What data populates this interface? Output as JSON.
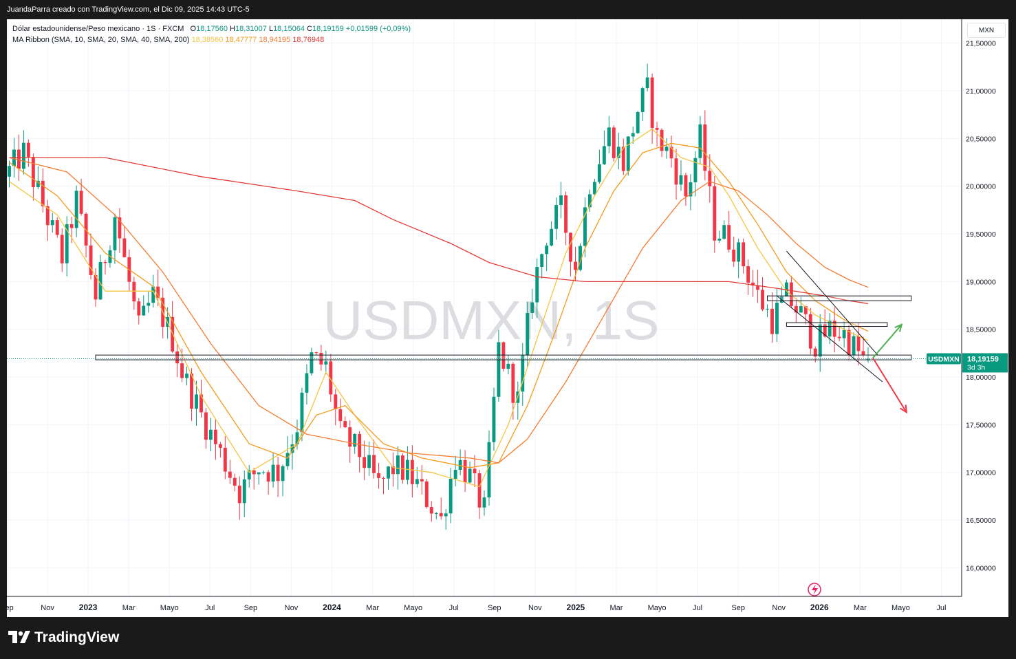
{
  "header": {
    "attribution": "JuandaParra creado con TradingView.com, el Dic 09, 2025 14:43 UTC-5"
  },
  "legend": {
    "instrument": "Dólar estadounidense/Peso mexicano · 1S · FXCM",
    "ohlc": [
      {
        "label": "O",
        "value": "18,17560"
      },
      {
        "label": "H",
        "value": "18,31007"
      },
      {
        "label": "L",
        "value": "18,15064"
      },
      {
        "label": "C",
        "value": "18,19159"
      }
    ],
    "change": "+0,01599 (+0,09%)",
    "change_color": "#089981",
    "indicator_name": "MA Ribbon (SMA, 10, SMA, 20, SMA, 40, SMA, 200)",
    "indicator_values": [
      {
        "value": "18,38560",
        "color": "#f5c542"
      },
      {
        "value": "18,47777",
        "color": "#f59a1a"
      },
      {
        "value": "18,94195",
        "color": "#f57c30"
      },
      {
        "value": "18,76948",
        "color": "#e53935"
      }
    ]
  },
  "currency": "MXN",
  "watermark": "USDMXN, 1S",
  "price_label": {
    "symbol": "USDMXN",
    "price": "18,19159",
    "countdown": "3d 3h",
    "color": "#089981"
  },
  "footer": {
    "brand": "TradingView"
  },
  "colors": {
    "up": "#089981",
    "down": "#f23645",
    "sma10": "#f5c542",
    "sma20": "#f59a1a",
    "sma40": "#f57c30",
    "sma200": "#e53935"
  },
  "chart_data": {
    "type": "candlestick",
    "title": "Dólar estadounidense/Peso mexicano · 1S · FXCM",
    "xlabel": "",
    "ylabel": "",
    "y_ticks": [
      "16,00000",
      "16,50000",
      "17,00000",
      "17,50000",
      "18,00000",
      "18,50000",
      "19,00000",
      "19,50000",
      "20,00000",
      "20,50000",
      "21,00000",
      "21,50000"
    ],
    "ylim": [
      15.7,
      21.75
    ],
    "x_ticks": [
      "Sep",
      "Nov",
      "2023",
      "Mar",
      "Mayo",
      "Jul",
      "Sep",
      "Nov",
      "2024",
      "Mar",
      "Mayo",
      "Jul",
      "Sep",
      "Nov",
      "2025",
      "Mar",
      "Mayo",
      "Jul",
      "Sep",
      "Nov",
      "2026",
      "Mar",
      "Mayo",
      "Jul"
    ],
    "bold_x_ticks": [
      "2023",
      "2024",
      "2025",
      "2026"
    ],
    "weeks_visible": 199,
    "weeks_plotted": 166,
    "anchors": [
      [
        0,
        20.1
      ],
      [
        4,
        20.35
      ],
      [
        8,
        19.8
      ],
      [
        12,
        19.25
      ],
      [
        15,
        19.85
      ],
      [
        19,
        18.85
      ],
      [
        23,
        19.7
      ],
      [
        28,
        18.5
      ],
      [
        31,
        18.85
      ],
      [
        35,
        18.4
      ],
      [
        37,
        18.05
      ],
      [
        41,
        17.6
      ],
      [
        45,
        17.2
      ],
      [
        49,
        16.8
      ],
      [
        53,
        17.05
      ],
      [
        57,
        17.0
      ],
      [
        61,
        17.5
      ],
      [
        64,
        18.2
      ],
      [
        67,
        18.1
      ],
      [
        70,
        17.4
      ],
      [
        74,
        17.2
      ],
      [
        78,
        16.85
      ],
      [
        81,
        17.05
      ],
      [
        84,
        17.0
      ],
      [
        87,
        16.8
      ],
      [
        91,
        16.5
      ],
      [
        94,
        17.15
      ],
      [
        97,
        16.95
      ],
      [
        100,
        16.6
      ],
      [
        103,
        18.3
      ],
      [
        107,
        17.75
      ],
      [
        110,
        18.9
      ],
      [
        113,
        19.5
      ],
      [
        116,
        19.75
      ],
      [
        119,
        19.15
      ],
      [
        122,
        20.05
      ],
      [
        126,
        20.55
      ],
      [
        129,
        20.25
      ],
      [
        132,
        20.8
      ],
      [
        134,
        21.0
      ],
      [
        136,
        20.5
      ],
      [
        139,
        20.3
      ],
      [
        142,
        19.9
      ],
      [
        145,
        20.5
      ],
      [
        148,
        19.55
      ],
      [
        151,
        19.45
      ],
      [
        154,
        19.2
      ],
      [
        157,
        18.85
      ],
      [
        160,
        18.6
      ],
      [
        163,
        18.85
      ],
      [
        166,
        18.65
      ],
      [
        169,
        18.35
      ],
      [
        172,
        18.5
      ],
      [
        175,
        18.45
      ],
      [
        178,
        18.25
      ],
      [
        179,
        18.19
      ]
    ],
    "series": [
      {
        "name": "SMA 10",
        "points": [
          [
            0,
            20.05
          ],
          [
            10,
            19.7
          ],
          [
            20,
            18.9
          ],
          [
            30,
            18.9
          ],
          [
            40,
            17.8
          ],
          [
            50,
            17.0
          ],
          [
            60,
            17.3
          ],
          [
            66,
            18.05
          ],
          [
            72,
            17.6
          ],
          [
            80,
            17.05
          ],
          [
            88,
            17.0
          ],
          [
            98,
            16.85
          ],
          [
            104,
            17.5
          ],
          [
            110,
            18.4
          ],
          [
            116,
            19.3
          ],
          [
            122,
            19.9
          ],
          [
            128,
            20.4
          ],
          [
            134,
            20.6
          ],
          [
            140,
            20.3
          ],
          [
            146,
            20.2
          ],
          [
            150,
            19.9
          ],
          [
            156,
            19.35
          ],
          [
            162,
            18.9
          ],
          [
            168,
            18.65
          ],
          [
            174,
            18.5
          ],
          [
            179,
            18.38
          ]
        ]
      },
      {
        "name": "SMA 20",
        "points": [
          [
            0,
            20.25
          ],
          [
            10,
            19.9
          ],
          [
            20,
            19.3
          ],
          [
            30,
            18.95
          ],
          [
            40,
            18.05
          ],
          [
            50,
            17.3
          ],
          [
            58,
            17.15
          ],
          [
            64,
            17.6
          ],
          [
            70,
            17.7
          ],
          [
            78,
            17.3
          ],
          [
            86,
            17.15
          ],
          [
            96,
            17.05
          ],
          [
            102,
            17.1
          ],
          [
            108,
            17.7
          ],
          [
            114,
            18.5
          ],
          [
            120,
            19.35
          ],
          [
            126,
            19.95
          ],
          [
            132,
            20.35
          ],
          [
            138,
            20.45
          ],
          [
            144,
            20.4
          ],
          [
            150,
            20.05
          ],
          [
            156,
            19.6
          ],
          [
            162,
            19.1
          ],
          [
            168,
            18.8
          ],
          [
            174,
            18.6
          ],
          [
            179,
            18.48
          ]
        ]
      },
      {
        "name": "SMA 40",
        "points": [
          [
            0,
            20.3
          ],
          [
            12,
            20.15
          ],
          [
            22,
            19.7
          ],
          [
            32,
            19.1
          ],
          [
            42,
            18.35
          ],
          [
            52,
            17.7
          ],
          [
            62,
            17.4
          ],
          [
            72,
            17.3
          ],
          [
            84,
            17.2
          ],
          [
            96,
            17.15
          ],
          [
            102,
            17.1
          ],
          [
            108,
            17.35
          ],
          [
            116,
            17.95
          ],
          [
            124,
            18.65
          ],
          [
            132,
            19.35
          ],
          [
            140,
            19.85
          ],
          [
            146,
            20.05
          ],
          [
            152,
            19.95
          ],
          [
            158,
            19.7
          ],
          [
            164,
            19.4
          ],
          [
            170,
            19.15
          ],
          [
            175,
            19.02
          ],
          [
            179,
            18.94
          ]
        ]
      },
      {
        "name": "SMA 200",
        "points": [
          [
            0,
            20.3
          ],
          [
            20,
            20.3
          ],
          [
            40,
            20.1
          ],
          [
            60,
            19.95
          ],
          [
            72,
            19.85
          ],
          [
            80,
            19.65
          ],
          [
            92,
            19.4
          ],
          [
            100,
            19.2
          ],
          [
            110,
            19.05
          ],
          [
            120,
            19.0
          ],
          [
            136,
            19.0
          ],
          [
            150,
            19.0
          ],
          [
            160,
            18.93
          ],
          [
            170,
            18.85
          ],
          [
            175,
            18.8
          ],
          [
            179,
            18.77
          ]
        ]
      }
    ],
    "annotations": [
      {
        "type": "rect",
        "label": "support-zone",
        "x1": 18,
        "x2": 188,
        "y1": 18.23,
        "y2": 18.18
      },
      {
        "type": "rect",
        "label": "resistance-zone-upper",
        "x1": 158,
        "x2": 188,
        "y1": 18.85,
        "y2": 18.8
      },
      {
        "type": "rect",
        "label": "resistance-zone-lower",
        "x1": 162,
        "x2": 183,
        "y1": 18.57,
        "y2": 18.53
      },
      {
        "type": "line",
        "label": "channel-upper",
        "x1": 162,
        "y1": 19.32,
        "x2": 181,
        "y2": 18.23
      },
      {
        "type": "line",
        "label": "channel-lower",
        "x1": 160,
        "y1": 18.85,
        "x2": 182,
        "y2": 17.95
      },
      {
        "type": "arrow",
        "label": "bullish-arrow",
        "x1": 180,
        "y1": 18.2,
        "x2": 186,
        "y2": 18.55,
        "color": "#4caf50"
      },
      {
        "type": "arrow",
        "label": "bearish-arrow",
        "x1": 180,
        "y1": 18.2,
        "x2": 187,
        "y2": 17.63,
        "color": "#f23645"
      }
    ],
    "grid": true
  }
}
